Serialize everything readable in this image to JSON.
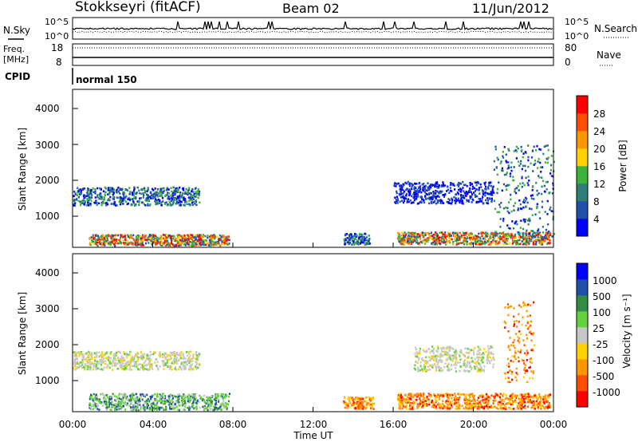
{
  "header": {
    "station": "Stokkseyri (fitACF)",
    "beam": "Beam 02",
    "date": "11/Jun/2012"
  },
  "noise_panel": {
    "left_label": "N.Sky",
    "right_label": "N.Search",
    "ticks": [
      "10^5",
      "10^0"
    ]
  },
  "freq_panel": {
    "left_label_line1": "Freq.",
    "left_label_line2": "[MHz]",
    "left_ticks": [
      "18",
      "8"
    ],
    "right_label": "Nave",
    "right_ticks": [
      "80",
      "0"
    ]
  },
  "cpid_panel": {
    "label": "CPID",
    "mode": "normal 150"
  },
  "colors": {
    "power": [
      "#0000ff",
      "#1e50aa",
      "#2d7d78",
      "#3cb43c",
      "#ffd200",
      "#ff9600",
      "#ff5000",
      "#ff0000"
    ],
    "velocity": [
      "#ff0000",
      "#ff5000",
      "#ff9600",
      "#ffd200",
      "#c8c8c8",
      "#64d23c",
      "#328c46",
      "#1e50aa",
      "#0000ff"
    ]
  },
  "chart_data": [
    {
      "type": "heatmap",
      "title": "Power",
      "ylabel": "Slant Range [km]",
      "yticks": [
        "1000",
        "2000",
        "3000",
        "4000"
      ],
      "ylim": [
        180,
        4500
      ],
      "xlim": [
        0,
        24
      ],
      "colorbar_label": "Power [dB]",
      "colorbar_ticks": [
        "4",
        "8",
        "12",
        "16",
        "20",
        "24",
        "28"
      ],
      "regions": [
        {
          "t": [
            0.0,
            6.3
          ],
          "r": [
            1350,
            1850
          ],
          "level": "low-mid"
        },
        {
          "t": [
            0.8,
            7.8
          ],
          "r": [
            250,
            550
          ],
          "level": "mid-high"
        },
        {
          "t": [
            13.5,
            14.8
          ],
          "r": [
            280,
            580
          ],
          "level": "low-mid"
        },
        {
          "t": [
            16.2,
            23.8
          ],
          "r": [
            280,
            620
          ],
          "level": "mid-high"
        },
        {
          "t": [
            16.0,
            21.0
          ],
          "r": [
            1400,
            2000
          ],
          "level": "low"
        },
        {
          "t": [
            21.0,
            24.0
          ],
          "r": [
            500,
            3000
          ],
          "level": "low-mid"
        }
      ]
    },
    {
      "type": "heatmap",
      "title": "Velocity",
      "ylabel": "Slant Range [km]",
      "yticks": [
        "1000",
        "2000",
        "3000",
        "4000"
      ],
      "ylim": [
        180,
        4500
      ],
      "xlim": [
        0,
        24
      ],
      "colorbar_label": "Velocity [m s⁻¹]",
      "colorbar_ticks": [
        "1000",
        "500",
        "100",
        "25",
        "-25",
        "-100",
        "-500",
        "-1000"
      ],
      "xlabel": "Time UT",
      "xticks": [
        "00:00",
        "04:00",
        "08:00",
        "12:00",
        "16:00",
        "20:00",
        "00:00"
      ],
      "regions": [
        {
          "t": [
            0.0,
            6.3
          ],
          "r": [
            1350,
            1850
          ],
          "level": "near-zero"
        },
        {
          "t": [
            0.8,
            7.8
          ],
          "r": [
            250,
            700
          ],
          "level": "positive"
        },
        {
          "t": [
            13.5,
            15.0
          ],
          "r": [
            280,
            600
          ],
          "level": "negative"
        },
        {
          "t": [
            16.2,
            23.8
          ],
          "r": [
            280,
            700
          ],
          "level": "negative"
        },
        {
          "t": [
            17.0,
            21.0
          ],
          "r": [
            1300,
            2000
          ],
          "level": "near-zero"
        },
        {
          "t": [
            21.5,
            23.0
          ],
          "r": [
            1000,
            3200
          ],
          "level": "negative"
        }
      ]
    }
  ]
}
